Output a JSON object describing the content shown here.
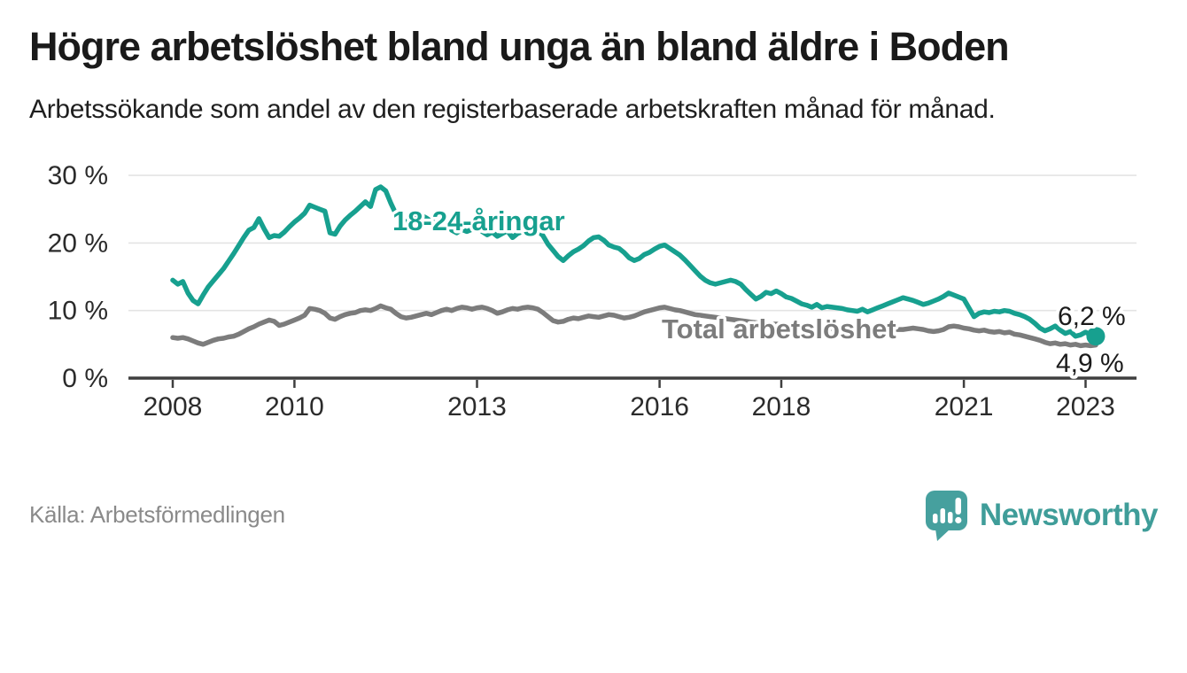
{
  "header": {
    "title": "Högre arbetslöshet bland unga än bland äldre i Boden",
    "subtitle": "Arbetssökande som andel av den registerbaserade arbetskraften månad för månad."
  },
  "footer": {
    "source": "Källa: Arbetsförmedlingen",
    "logo_text": "Newsworthy",
    "logo_color": "#3f9d99"
  },
  "chart_data": {
    "type": "line",
    "x_unit": "month",
    "x_start": "2008-01",
    "x_end": "2023-03",
    "grid": true,
    "ylim": [
      0,
      31
    ],
    "y_ticks": [
      {
        "value": 0,
        "label": "0 %"
      },
      {
        "value": 10,
        "label": "10 %"
      },
      {
        "value": 20,
        "label": "20 %"
      },
      {
        "value": 30,
        "label": "30 %"
      }
    ],
    "x_ticks": [
      {
        "year": 2008,
        "label": "2008"
      },
      {
        "year": 2010,
        "label": "2010"
      },
      {
        "year": 2013,
        "label": "2013"
      },
      {
        "year": 2016,
        "label": "2016"
      },
      {
        "year": 2018,
        "label": "2018"
      },
      {
        "year": 2021,
        "label": "2021"
      },
      {
        "year": 2023,
        "label": "2023"
      }
    ],
    "series": [
      {
        "id": "youth",
        "name": "18-24-åringar",
        "color": "#17a08f",
        "end_label": "6,2 %",
        "end_value": 6.2,
        "values": [
          14.5,
          13.9,
          14.3,
          12.6,
          11.5,
          11.0,
          12.3,
          13.5,
          14.4,
          15.3,
          16.2,
          17.3,
          18.4,
          19.6,
          20.8,
          21.9,
          22.3,
          23.6,
          22.1,
          20.8,
          21.1,
          21.0,
          21.6,
          22.4,
          23.1,
          23.7,
          24.4,
          25.6,
          25.3,
          25.0,
          24.7,
          21.5,
          21.3,
          22.5,
          23.4,
          24.1,
          24.7,
          25.4,
          26.1,
          25.4,
          27.9,
          28.3,
          27.7,
          25.9,
          24.3,
          23.4,
          23.1,
          23.6,
          23.9,
          24.1,
          23.7,
          23.2,
          22.9,
          23.3,
          22.6,
          21.9,
          21.5,
          22.0,
          21.7,
          22.0,
          22.3,
          21.7,
          21.2,
          21.6,
          21.0,
          21.4,
          21.8,
          20.8,
          21.4,
          21.7,
          22.0,
          21.9,
          21.8,
          21.1,
          19.8,
          18.9,
          18.0,
          17.4,
          18.1,
          18.7,
          19.1,
          19.6,
          20.3,
          20.8,
          20.9,
          20.4,
          19.7,
          19.4,
          19.2,
          18.6,
          17.8,
          17.4,
          17.7,
          18.3,
          18.6,
          19.1,
          19.5,
          19.7,
          19.2,
          18.7,
          18.2,
          17.5,
          16.7,
          15.9,
          15.1,
          14.5,
          14.1,
          13.9,
          14.1,
          14.3,
          14.5,
          14.3,
          13.9,
          13.1,
          12.4,
          11.7,
          12.1,
          12.7,
          12.5,
          12.9,
          12.5,
          12.0,
          11.8,
          11.4,
          11.0,
          10.8,
          10.5,
          10.9,
          10.4,
          10.6,
          10.5,
          10.4,
          10.3,
          10.1,
          10.0,
          9.9,
          10.2,
          9.8,
          10.1,
          10.4,
          10.7,
          11.0,
          11.3,
          11.6,
          11.9,
          11.7,
          11.5,
          11.2,
          10.9,
          11.1,
          11.4,
          11.7,
          12.1,
          12.6,
          12.3,
          12.0,
          11.7,
          10.4,
          9.1,
          9.6,
          9.8,
          9.7,
          9.9,
          9.8,
          10.0,
          9.9,
          9.6,
          9.4,
          9.1,
          8.7,
          8.1,
          7.4,
          7.0,
          7.3,
          7.7,
          7.1,
          6.6,
          6.9,
          6.2,
          6.4,
          6.8,
          6.4,
          6.2
        ]
      },
      {
        "id": "total",
        "name": "Total arbetslöshet",
        "color": "#7c7c7c",
        "end_label": "4,9 %",
        "end_value": 4.9,
        "values": [
          6.0,
          5.9,
          6.0,
          5.8,
          5.5,
          5.2,
          5.0,
          5.3,
          5.6,
          5.8,
          5.9,
          6.1,
          6.2,
          6.5,
          6.9,
          7.3,
          7.6,
          8.0,
          8.3,
          8.6,
          8.4,
          7.8,
          8.0,
          8.3,
          8.6,
          8.9,
          9.3,
          10.3,
          10.2,
          10.0,
          9.6,
          8.9,
          8.7,
          9.1,
          9.4,
          9.6,
          9.7,
          10.0,
          10.1,
          10.0,
          10.3,
          10.7,
          10.4,
          10.2,
          9.6,
          9.1,
          8.9,
          9.0,
          9.2,
          9.4,
          9.6,
          9.4,
          9.7,
          10.0,
          10.2,
          10.0,
          10.3,
          10.5,
          10.4,
          10.2,
          10.4,
          10.5,
          10.3,
          10.0,
          9.6,
          9.8,
          10.1,
          10.3,
          10.2,
          10.4,
          10.5,
          10.4,
          10.2,
          9.7,
          9.1,
          8.5,
          8.3,
          8.4,
          8.7,
          8.9,
          8.8,
          9.0,
          9.2,
          9.1,
          9.0,
          9.2,
          9.4,
          9.3,
          9.1,
          8.9,
          9.0,
          9.2,
          9.5,
          9.8,
          10.0,
          10.2,
          10.4,
          10.5,
          10.3,
          10.1,
          10.0,
          9.8,
          9.6,
          9.4,
          9.3,
          9.2,
          9.1,
          9.0,
          8.9,
          8.8,
          8.7,
          8.6,
          8.5,
          8.4,
          8.3,
          8.2,
          8.1,
          8.1,
          8.0,
          8.0,
          7.9,
          7.8,
          7.8,
          7.7,
          7.6,
          7.6,
          7.5,
          7.5,
          7.4,
          7.4,
          7.3,
          7.3,
          7.3,
          7.2,
          7.2,
          7.2,
          7.1,
          7.1,
          7.1,
          7.2,
          7.2,
          7.3,
          7.3,
          7.2,
          7.2,
          7.3,
          7.4,
          7.3,
          7.2,
          7.0,
          6.9,
          7.0,
          7.2,
          7.6,
          7.7,
          7.6,
          7.4,
          7.3,
          7.1,
          7.0,
          7.1,
          6.9,
          6.8,
          6.9,
          6.7,
          6.8,
          6.5,
          6.4,
          6.2,
          6.0,
          5.8,
          5.6,
          5.3,
          5.1,
          5.2,
          5.0,
          5.1,
          4.9,
          5.0,
          4.8,
          4.9,
          4.8,
          4.9
        ]
      }
    ]
  }
}
